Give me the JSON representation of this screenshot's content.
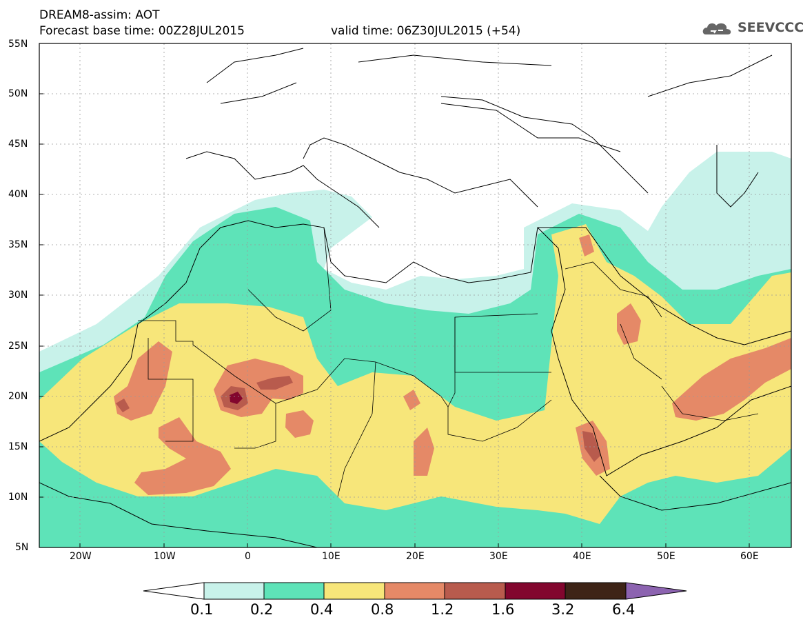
{
  "header": {
    "title_line1": "DREAM8-assim: AOT",
    "forecast_base": "Forecast base time: 00Z28JUL2015",
    "valid_time": "valid time: 06Z30JUL2015 (+54)",
    "logo_text": "SEEVCCC",
    "logo_icon": "cloud-icon"
  },
  "axes": {
    "lat_labels": [
      "55N",
      "50N",
      "45N",
      "40N",
      "35N",
      "30N",
      "25N",
      "20N",
      "15N",
      "10N",
      "5N"
    ],
    "lon_labels": [
      "20W",
      "10W",
      "0",
      "10E",
      "20E",
      "30E",
      "40E",
      "50E",
      "60E"
    ],
    "lat_range": [
      5,
      55
    ],
    "lon_range": [
      -25,
      65
    ]
  },
  "legend": {
    "levels": [
      "0.1",
      "0.2",
      "0.4",
      "0.8",
      "1.2",
      "1.6",
      "3.2",
      "6.4"
    ],
    "colors": [
      "#ffffff",
      "#c8f2ea",
      "#5ee3b8",
      "#f7e67a",
      "#e58967",
      "#b85b4d",
      "#82062e",
      "#3e2417",
      "#8c63b0"
    ]
  }
}
